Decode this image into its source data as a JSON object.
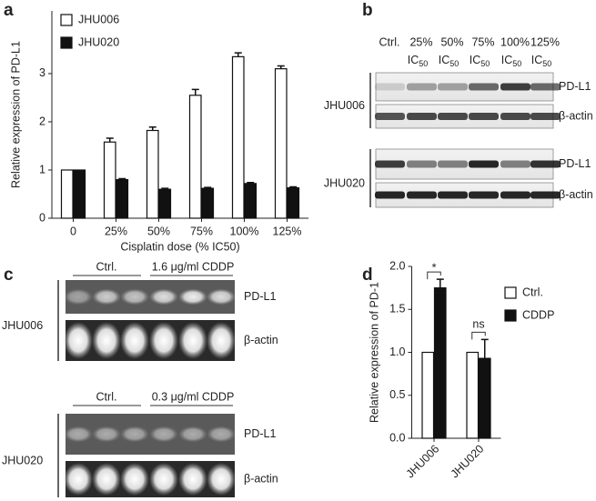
{
  "chart_data": [
    {
      "type": "bar",
      "panel_label": "a",
      "ylabel": "Relative expression of PD-L1",
      "xlabel": "Cisplatin dose (% IC50)",
      "categories": [
        "0",
        "25%",
        "50%",
        "75%",
        "100%",
        "125%"
      ],
      "series": [
        {
          "name": "JHU006",
          "color": "#ffffff",
          "values": [
            1,
            1.58,
            1.82,
            2.55,
            3.35,
            3.1
          ],
          "errors": [
            null,
            0.08,
            0.07,
            0.12,
            0.08,
            0.06
          ]
        },
        {
          "name": "JHU020",
          "color": "#111111",
          "values": [
            1,
            0.8,
            0.6,
            0.62,
            0.72,
            0.63
          ],
          "errors": [
            null,
            0.02,
            0.02,
            0.02,
            0.02,
            0.02
          ]
        }
      ],
      "ylim": [
        0,
        4.3
      ],
      "yticks": [
        0,
        1,
        2,
        3
      ],
      "legend": "upper left"
    },
    {
      "type": "bar",
      "panel_label": "d",
      "ylabel": "Relative expression of PD-1",
      "categories": [
        "JHU006",
        "JHU020"
      ],
      "series": [
        {
          "name": "Ctrl.",
          "color": "#ffffff",
          "values": [
            1,
            1
          ],
          "errors": [
            null,
            null
          ]
        },
        {
          "name": "CDDP",
          "color": "#111111",
          "values": [
            1.75,
            0.93
          ],
          "errors": [
            0.1,
            0.22
          ]
        }
      ],
      "annotations": [
        "*",
        "ns"
      ],
      "ylim": [
        0,
        2
      ],
      "yticks": [
        {
          "value": 0,
          "label": "0.0"
        },
        {
          "value": 0.5,
          "label": "0.5"
        },
        {
          "value": 1,
          "label": "1.0"
        },
        {
          "value": 1.5,
          "label": "1.5"
        },
        {
          "value": 2,
          "label": "2.0"
        }
      ],
      "legend": "upper right",
      "rotated_xticks": true
    }
  ],
  "blot_b": {
    "panel_label": "b",
    "lanes": [
      {
        "line1": "Ctrl."
      },
      {
        "line1": "25%",
        "line2": "IC",
        "sub": "50"
      },
      {
        "line1": "50%",
        "line2": "IC",
        "sub": "50"
      },
      {
        "line1": "75%",
        "line2": "IC",
        "sub": "50"
      },
      {
        "line1": "100%",
        "line2": "IC",
        "sub": "50"
      },
      {
        "line1": "125%",
        "line2": "IC",
        "sub": "50"
      }
    ],
    "cell_lines": [
      "JHU006",
      "JHU020"
    ],
    "bands": [
      "PD-L1",
      "β-actin"
    ]
  },
  "gel_c": {
    "panel_label": "c",
    "groups": [
      {
        "cell_line": "JHU006",
        "ctrl": "Ctrl.",
        "treated": "1.6 μg/ml CDDP"
      },
      {
        "cell_line": "JHU020",
        "ctrl": "Ctrl.",
        "treated": "0.3 μg/ml CDDP"
      }
    ],
    "bands": [
      "PD-L1",
      "β-actin"
    ]
  }
}
